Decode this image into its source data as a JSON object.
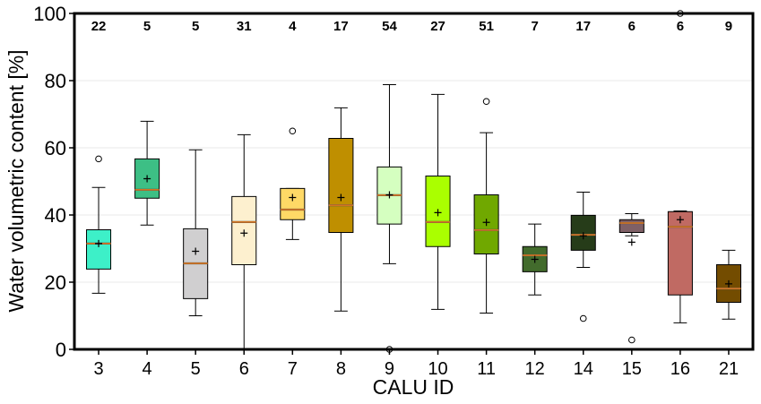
{
  "chart_data": {
    "type": "box",
    "title": "",
    "xlabel": "CALU ID",
    "ylabel": "Water volumetric content [%]",
    "ylim": [
      0,
      100
    ],
    "yticks": [
      0,
      20,
      40,
      60,
      80,
      100
    ],
    "grid": true,
    "categories": [
      "3",
      "4",
      "5",
      "6",
      "7",
      "8",
      "9",
      "10",
      "11",
      "12",
      "14",
      "15",
      "16",
      "21"
    ],
    "counts": [
      "22",
      "5",
      "5",
      "31",
      "4",
      "17",
      "54",
      "27",
      "51",
      "7",
      "17",
      "6",
      "6",
      "9"
    ],
    "colors": [
      "#3df0c8",
      "#3dbf85",
      "#d0cfd0",
      "#fdf0cf",
      "#ffd966",
      "#bf8f00",
      "#d5ffc0",
      "#aaff00",
      "#70a800",
      "#426b2c",
      "#263c19",
      "#7f6066",
      "#c06a63",
      "#734c00"
    ],
    "median_color": "#ff7f0e",
    "boxes": [
      {
        "low": 16.7,
        "q1": 23.9,
        "median": 31.5,
        "q3": 35.6,
        "high": 48.2,
        "mean": 31.5,
        "outliers": [
          56.7
        ]
      },
      {
        "low": 37.0,
        "q1": 45.0,
        "median": 47.5,
        "q3": 56.7,
        "high": 67.9,
        "mean": 50.8,
        "outliers": []
      },
      {
        "low": 10.0,
        "q1": 15.1,
        "median": 25.6,
        "q3": 35.9,
        "high": 59.4,
        "mean": 29.2,
        "outliers": []
      },
      {
        "low": 0.0,
        "q1": 25.2,
        "median": 37.9,
        "q3": 45.5,
        "high": 63.9,
        "mean": 34.6,
        "outliers": []
      },
      {
        "low": 32.7,
        "q1": 38.6,
        "median": 41.6,
        "q3": 47.9,
        "high": 47.9,
        "mean": 45.2,
        "outliers": [
          65.0
        ]
      },
      {
        "low": 11.4,
        "q1": 34.8,
        "median": 42.9,
        "q3": 62.8,
        "high": 71.9,
        "mean": 45.2,
        "outliers": []
      },
      {
        "low": 25.5,
        "q1": 37.3,
        "median": 45.9,
        "q3": 54.3,
        "high": 78.8,
        "mean": 46.0,
        "outliers": [
          0.0
        ]
      },
      {
        "low": 11.9,
        "q1": 30.6,
        "median": 37.9,
        "q3": 51.6,
        "high": 75.9,
        "mean": 40.7,
        "outliers": []
      },
      {
        "low": 10.8,
        "q1": 28.4,
        "median": 35.5,
        "q3": 46.0,
        "high": 64.5,
        "mean": 37.8,
        "outliers": [
          73.8
        ]
      },
      {
        "low": 16.2,
        "q1": 23.1,
        "median": 28.0,
        "q3": 30.6,
        "high": 37.3,
        "mean": 26.8,
        "outliers": []
      },
      {
        "low": 24.4,
        "q1": 29.5,
        "median": 34.1,
        "q3": 39.9,
        "high": 46.8,
        "mean": 33.8,
        "outliers": [
          9.2
        ]
      },
      {
        "low": 33.8,
        "q1": 34.8,
        "median": 37.6,
        "q3": 38.6,
        "high": 40.4,
        "mean": 31.9,
        "outliers": [
          2.8
        ]
      },
      {
        "low": 7.9,
        "q1": 16.2,
        "median": 36.5,
        "q3": 41.0,
        "high": 41.2,
        "mean": 38.6,
        "outliers": [
          100.0
        ]
      },
      {
        "low": 9.0,
        "q1": 14.0,
        "median": 18.1,
        "q3": 25.2,
        "high": 29.5,
        "mean": 19.5,
        "outliers": []
      }
    ]
  }
}
